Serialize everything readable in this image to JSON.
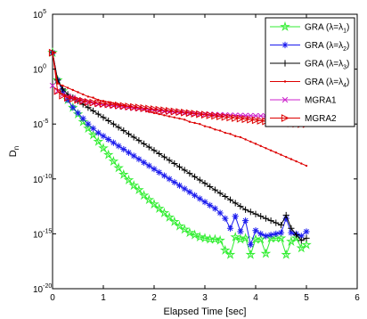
{
  "chart_data": {
    "type": "line",
    "xlabel": "Elapsed Time [sec]",
    "ylabel": "D",
    "ylabel_sub": "n",
    "xlim": [
      0,
      6
    ],
    "ylim_log10": [
      -20,
      5
    ],
    "y_scale": "log",
    "grid": false,
    "legend_placement": "top-right",
    "x_ticks": [
      "0",
      "1",
      "2",
      "3",
      "4",
      "5",
      "6"
    ],
    "y_ticks": [
      {
        "base": "10",
        "exp": "-20"
      },
      {
        "base": "10",
        "exp": "-15"
      },
      {
        "base": "10",
        "exp": "-10"
      },
      {
        "base": "10",
        "exp": "-5"
      },
      {
        "base": "10",
        "exp": "0"
      },
      {
        "base": "10",
        "exp": "5"
      }
    ],
    "series": [
      {
        "name": "GRA (λ=λ₁)",
        "legend_main": "GRA (λ=λ",
        "legend_sub": "1",
        "legend_tail": ")",
        "color": "#33ee33",
        "marker": "star",
        "x": [
          0.0,
          0.1,
          0.2,
          0.3,
          0.4,
          0.5,
          0.6,
          0.7,
          0.8,
          0.9,
          1.0,
          1.1,
          1.2,
          1.3,
          1.4,
          1.5,
          1.6,
          1.7,
          1.8,
          1.9,
          2.0,
          2.1,
          2.2,
          2.3,
          2.4,
          2.5,
          2.6,
          2.7,
          2.8,
          2.9,
          3.0,
          3.1,
          3.2,
          3.3,
          3.4,
          3.5,
          3.6,
          3.7,
          3.8,
          3.9,
          4.0,
          4.1,
          4.2,
          4.3,
          4.4,
          4.5,
          4.6,
          4.7,
          4.8,
          4.9,
          5.0
        ],
        "log10y": [
          1.5,
          -1.0,
          -2.0,
          -2.8,
          -3.5,
          -4.1,
          -4.8,
          -5.4,
          -6.0,
          -6.6,
          -7.2,
          -7.8,
          -8.4,
          -9.0,
          -9.6,
          -10.1,
          -10.6,
          -11.0,
          -11.5,
          -11.9,
          -12.3,
          -12.7,
          -13.1,
          -13.5,
          -13.9,
          -14.3,
          -14.6,
          -14.9,
          -15.1,
          -15.3,
          -15.4,
          -15.5,
          -15.5,
          -15.6,
          -16.5,
          -16.9,
          -15.3,
          -15.5,
          -15.4,
          -16.9,
          -15.5,
          -15.5,
          -16.8,
          -15.4,
          -15.4,
          -15.4,
          -16.9,
          -15.7,
          -15.4,
          -16.3,
          -16.0
        ]
      },
      {
        "name": "GRA (λ=λ₂)",
        "legend_main": "GRA (λ=λ",
        "legend_sub": "2",
        "legend_tail": ")",
        "color": "#1a1aee",
        "marker": "asterisk",
        "x": [
          0.0,
          0.1,
          0.2,
          0.3,
          0.4,
          0.5,
          0.6,
          0.7,
          0.8,
          0.9,
          1.0,
          1.1,
          1.2,
          1.3,
          1.4,
          1.5,
          1.6,
          1.7,
          1.8,
          1.9,
          2.0,
          2.1,
          2.2,
          2.3,
          2.4,
          2.5,
          2.6,
          2.7,
          2.8,
          2.9,
          3.0,
          3.1,
          3.2,
          3.3,
          3.4,
          3.5,
          3.6,
          3.7,
          3.8,
          3.9,
          4.0,
          4.1,
          4.2,
          4.3,
          4.4,
          4.5,
          4.6,
          4.7,
          4.8,
          4.9,
          5.0
        ],
        "log10y": [
          1.5,
          -1.0,
          -2.0,
          -2.8,
          -3.5,
          -4.0,
          -4.5,
          -5.0,
          -5.4,
          -5.8,
          -6.1,
          -6.4,
          -6.7,
          -7.0,
          -7.3,
          -7.6,
          -7.9,
          -8.2,
          -8.5,
          -8.8,
          -9.1,
          -9.4,
          -9.7,
          -10.0,
          -10.3,
          -10.6,
          -10.9,
          -11.2,
          -11.5,
          -11.8,
          -12.1,
          -12.4,
          -12.7,
          -13.1,
          -13.6,
          -14.5,
          -13.4,
          -14.8,
          -13.8,
          -16.0,
          -14.7,
          -15.0,
          -15.2,
          -15.1,
          -15.0,
          -14.9,
          -13.6,
          -14.9,
          -15.0,
          -15.2,
          -14.8
        ]
      },
      {
        "name": "GRA (λ=λ₃)",
        "legend_main": "GRA (λ=λ",
        "legend_sub": "3",
        "legend_tail": ")",
        "color": "#000000",
        "marker": "plus",
        "x": [
          0.0,
          0.1,
          0.2,
          0.3,
          0.4,
          0.5,
          0.6,
          0.7,
          0.8,
          0.9,
          1.0,
          1.1,
          1.2,
          1.3,
          1.4,
          1.5,
          1.6,
          1.7,
          1.8,
          1.9,
          2.0,
          2.1,
          2.2,
          2.3,
          2.4,
          2.5,
          2.6,
          2.7,
          2.8,
          2.9,
          3.0,
          3.1,
          3.2,
          3.3,
          3.4,
          3.5,
          3.6,
          3.7,
          3.8,
          3.9,
          4.0,
          4.1,
          4.2,
          4.3,
          4.4,
          4.5,
          4.6,
          4.7,
          4.8,
          4.9,
          5.0
        ],
        "log10y": [
          1.5,
          -1.0,
          -1.8,
          -2.3,
          -2.6,
          -2.9,
          -3.2,
          -3.5,
          -3.8,
          -4.1,
          -4.4,
          -4.7,
          -5.0,
          -5.3,
          -5.6,
          -5.9,
          -6.2,
          -6.5,
          -6.8,
          -7.1,
          -7.4,
          -7.7,
          -8.0,
          -8.3,
          -8.6,
          -8.9,
          -9.2,
          -9.5,
          -9.8,
          -10.1,
          -10.4,
          -10.7,
          -11.0,
          -11.3,
          -11.6,
          -11.9,
          -12.2,
          -12.5,
          -12.8,
          -13.0,
          -13.2,
          -13.4,
          -13.6,
          -13.8,
          -14.0,
          -14.2,
          -13.3,
          -14.5,
          -15.1,
          -15.6,
          -15.4
        ]
      },
      {
        "name": "GRA (λ=λ₄)",
        "legend_main": "GRA (λ=λ",
        "legend_sub": "4",
        "legend_tail": ")",
        "color": "#dd0000",
        "marker": "dot",
        "x": [
          0.0,
          0.1,
          0.2,
          0.3,
          0.4,
          0.5,
          0.6,
          0.7,
          0.8,
          0.9,
          1.0,
          1.1,
          1.2,
          1.3,
          1.4,
          1.5,
          1.6,
          1.7,
          1.8,
          1.9,
          2.0,
          2.1,
          2.2,
          2.3,
          2.4,
          2.5,
          2.6,
          2.7,
          2.8,
          2.9,
          3.0,
          3.1,
          3.2,
          3.3,
          3.4,
          3.5,
          3.6,
          3.7,
          3.8,
          3.9,
          4.0,
          4.1,
          4.2,
          4.3,
          4.4,
          4.5,
          4.6,
          4.7,
          4.8,
          4.9,
          5.0
        ],
        "log10y": [
          1.5,
          -1.3,
          -1.5,
          -1.7,
          -1.9,
          -2.1,
          -2.3,
          -2.5,
          -2.6,
          -2.8,
          -2.9,
          -3.0,
          -3.1,
          -3.2,
          -3.3,
          -3.4,
          -3.5,
          -3.6,
          -3.7,
          -3.9,
          -4.0,
          -4.1,
          -4.2,
          -4.3,
          -4.4,
          -4.5,
          -4.6,
          -4.8,
          -4.9,
          -5.0,
          -5.2,
          -5.3,
          -5.5,
          -5.6,
          -5.8,
          -5.9,
          -6.1,
          -6.2,
          -6.4,
          -6.6,
          -6.8,
          -7.0,
          -7.2,
          -7.4,
          -7.6,
          -7.8,
          -8.0,
          -8.2,
          -8.4,
          -8.6,
          -8.8
        ]
      },
      {
        "name": "MGRA1",
        "legend_main": "MGRA1",
        "legend_sub": "",
        "legend_tail": "",
        "color": "#cc22cc",
        "marker": "x",
        "x": [
          0.0,
          0.1,
          0.2,
          0.3,
          0.4,
          0.5,
          0.6,
          0.7,
          0.8,
          0.9,
          1.0,
          1.1,
          1.2,
          1.3,
          1.4,
          1.5,
          1.6,
          1.7,
          1.8,
          1.9,
          2.0,
          2.1,
          2.2,
          2.3,
          2.4,
          2.5,
          2.6,
          2.7,
          2.8,
          2.9,
          3.0,
          3.1,
          3.2,
          3.3,
          3.4,
          3.5,
          3.6,
          3.7,
          3.8,
          3.9,
          4.0,
          4.1,
          4.2,
          4.3,
          4.4,
          4.5,
          4.6,
          4.7,
          4.8,
          4.9,
          5.0
        ],
        "log10y": [
          -1.5,
          -2.0,
          -2.3,
          -2.5,
          -2.6,
          -2.8,
          -2.9,
          -3.0,
          -3.1,
          -3.2,
          -3.25,
          -3.3,
          -3.35,
          -3.4,
          -3.45,
          -3.5,
          -3.55,
          -3.6,
          -3.65,
          -3.7,
          -3.75,
          -3.8,
          -3.85,
          -3.9,
          -3.93,
          -3.96,
          -4.0,
          -4.02,
          -4.05,
          -4.08,
          -4.1,
          -4.12,
          -4.14,
          -4.16,
          -4.18,
          -4.2,
          -4.21,
          -4.22,
          -4.23,
          -4.24,
          -4.25,
          -4.26,
          -4.27,
          -4.28,
          -4.29,
          -4.3,
          -4.3,
          -4.3,
          -4.3,
          -4.3,
          -4.3
        ]
      },
      {
        "name": "MGRA2",
        "legend_main": "MGRA2",
        "legend_sub": "",
        "legend_tail": "",
        "color": "#dd0000",
        "marker": "triangle-right",
        "x": [
          0.0,
          0.1,
          0.2,
          0.3,
          0.4,
          0.5,
          0.6,
          0.7,
          0.8,
          0.9,
          1.0,
          1.1,
          1.2,
          1.3,
          1.4,
          1.5,
          1.6,
          1.7,
          1.8,
          1.9,
          2.0,
          2.1,
          2.2,
          2.3,
          2.4,
          2.5,
          2.6,
          2.7,
          2.8,
          2.9,
          3.0,
          3.1,
          3.2,
          3.3,
          3.4,
          3.5,
          3.6,
          3.7,
          3.8,
          3.9,
          4.0,
          4.1,
          4.2,
          4.3,
          4.4,
          4.5,
          4.6,
          4.7,
          4.8,
          4.9,
          5.0
        ],
        "log10y": [
          1.5,
          -2.0,
          -2.4,
          -2.6,
          -2.7,
          -2.8,
          -2.9,
          -3.0,
          -3.05,
          -3.1,
          -3.15,
          -3.2,
          -3.25,
          -3.3,
          -3.35,
          -3.4,
          -3.45,
          -3.5,
          -3.55,
          -3.6,
          -3.65,
          -3.7,
          -3.75,
          -3.8,
          -3.85,
          -3.9,
          -3.95,
          -4.0,
          -4.05,
          -4.1,
          -4.15,
          -4.2,
          -4.25,
          -4.3,
          -4.35,
          -4.4,
          -4.45,
          -4.5,
          -4.55,
          -4.6,
          -4.65,
          -4.7,
          -4.75,
          -4.8,
          -4.85,
          -4.9,
          -4.92,
          -4.95,
          -4.97,
          -5.0,
          -5.0
        ]
      }
    ]
  }
}
